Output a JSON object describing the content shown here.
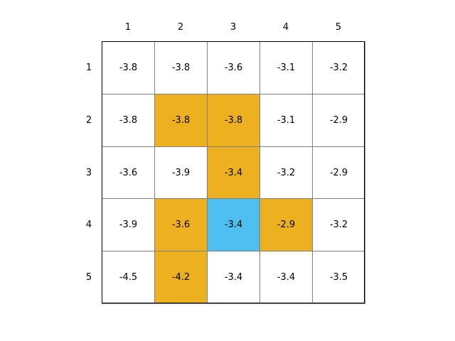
{
  "chart_data": {
    "type": "table",
    "column_labels": [
      "1",
      "2",
      "3",
      "4",
      "5"
    ],
    "row_labels": [
      "1",
      "2",
      "3",
      "4",
      "5"
    ],
    "values": [
      [
        "-3.8",
        "-3.8",
        "-3.6",
        "-3.1",
        "-3.2"
      ],
      [
        "-3.8",
        "-3.8",
        "-3.8",
        "-3.1",
        "-2.9"
      ],
      [
        "-3.6",
        "-3.9",
        "-3.4",
        "-3.2",
        "-2.9"
      ],
      [
        "-3.9",
        "-3.6",
        "-3.4",
        "-2.9",
        "-3.2"
      ],
      [
        "-4.5",
        "-4.2",
        "-3.4",
        "-3.4",
        "-3.5"
      ]
    ],
    "highlight": [
      [
        "none",
        "none",
        "none",
        "none",
        "none"
      ],
      [
        "none",
        "orange",
        "orange",
        "none",
        "none"
      ],
      [
        "none",
        "none",
        "orange",
        "none",
        "none"
      ],
      [
        "none",
        "orange",
        "blue",
        "orange",
        "none"
      ],
      [
        "none",
        "orange",
        "none",
        "none",
        "none"
      ]
    ],
    "colors": {
      "none": "#ffffff",
      "orange": "#edb120",
      "blue": "#4dbeee"
    }
  }
}
